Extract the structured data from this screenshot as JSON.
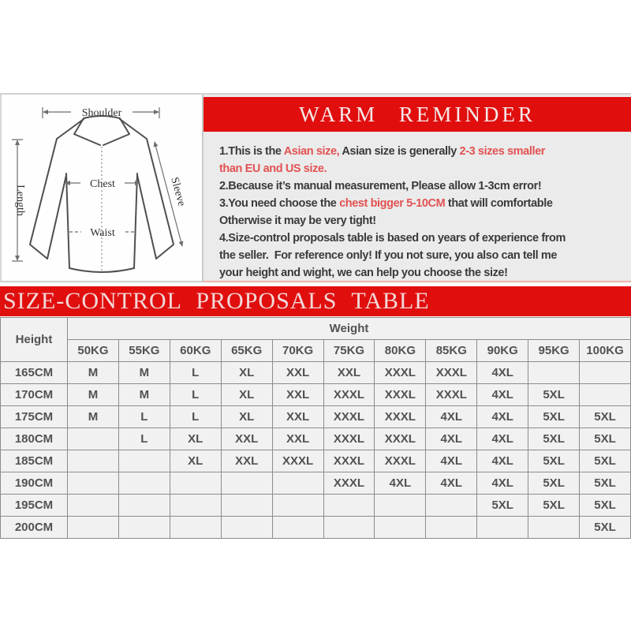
{
  "colors": {
    "banner_red": "#e10e0e",
    "accent_red": "#e25252",
    "dark_text": "#3a3a3a",
    "table_text": "#525252",
    "table_border": "#8c8c8c",
    "table_bg": "#f1f1f1",
    "panel_bg": "#ebebeb",
    "banner_title": "#f6eaea",
    "table_title": "#f2d8d8"
  },
  "diagram": {
    "labels": {
      "shoulder": "Shoulder",
      "length": "Length",
      "chest": "Chest",
      "waist": "Waist",
      "sleeve": "Sleeve"
    }
  },
  "reminder": {
    "title": "WARM REMINDER",
    "lines": [
      [
        {
          "t": "1.This is the ",
          "c": "dark"
        },
        {
          "t": "Asian size,",
          "c": "red"
        },
        {
          "t": " Asian size is generally ",
          "c": "dark"
        },
        {
          "t": "2-3 sizes smaller",
          "c": "red"
        }
      ],
      [
        {
          "t": "than EU and US size.",
          "c": "red"
        }
      ],
      [
        {
          "t": "2.Because it’s manual measurement, Please allow 1-3cm error!",
          "c": "dark"
        }
      ],
      [
        {
          "t": "3.You need choose the ",
          "c": "dark"
        },
        {
          "t": "chest bigger 5-10CM",
          "c": "red"
        },
        {
          "t": " that will comfortable",
          "c": "dark"
        }
      ],
      [
        {
          "t": "Otherwise it may be very tight!",
          "c": "dark"
        }
      ],
      [
        {
          "t": "4.Size-control proposals table is based on years of experience from",
          "c": "dark"
        }
      ],
      [
        {
          "t": "the seller.  For reference only! If you not sure, you also can tell me",
          "c": "dark"
        }
      ],
      [
        {
          "t": "your height and wight, we can help you choose the size!",
          "c": "dark"
        }
      ]
    ]
  },
  "size_table": {
    "title": "SIZE-CONTROL PROPOSALS TABLE",
    "height_header": "Height",
    "weight_header": "Weight",
    "weight_columns": [
      "50KG",
      "55KG",
      "60KG",
      "65KG",
      "70KG",
      "75KG",
      "80KG",
      "85KG",
      "90KG",
      "95KG",
      "100KG"
    ],
    "rows": [
      {
        "height": "165CM",
        "sizes": [
          "M",
          "M",
          "L",
          "XL",
          "XXL",
          "XXL",
          "XXXL",
          "XXXL",
          "4XL",
          "",
          ""
        ]
      },
      {
        "height": "170CM",
        "sizes": [
          "M",
          "M",
          "L",
          "XL",
          "XXL",
          "XXXL",
          "XXXL",
          "XXXL",
          "4XL",
          "5XL",
          ""
        ]
      },
      {
        "height": "175CM",
        "sizes": [
          "M",
          "L",
          "L",
          "XL",
          "XXL",
          "XXXL",
          "XXXL",
          "4XL",
          "4XL",
          "5XL",
          "5XL"
        ]
      },
      {
        "height": "180CM",
        "sizes": [
          "",
          "L",
          "XL",
          "XXL",
          "XXL",
          "XXXL",
          "XXXL",
          "4XL",
          "4XL",
          "5XL",
          "5XL"
        ]
      },
      {
        "height": "185CM",
        "sizes": [
          "",
          "",
          "XL",
          "XXL",
          "XXXL",
          "XXXL",
          "XXXL",
          "4XL",
          "4XL",
          "5XL",
          "5XL"
        ]
      },
      {
        "height": "190CM",
        "sizes": [
          "",
          "",
          "",
          "",
          "",
          "XXXL",
          "4XL",
          "4XL",
          "4XL",
          "5XL",
          "5XL"
        ]
      },
      {
        "height": "195CM",
        "sizes": [
          "",
          "",
          "",
          "",
          "",
          "",
          "",
          "",
          "5XL",
          "5XL",
          "5XL"
        ]
      },
      {
        "height": "200CM",
        "sizes": [
          "",
          "",
          "",
          "",
          "",
          "",
          "",
          "",
          "",
          "",
          "5XL"
        ]
      }
    ]
  }
}
